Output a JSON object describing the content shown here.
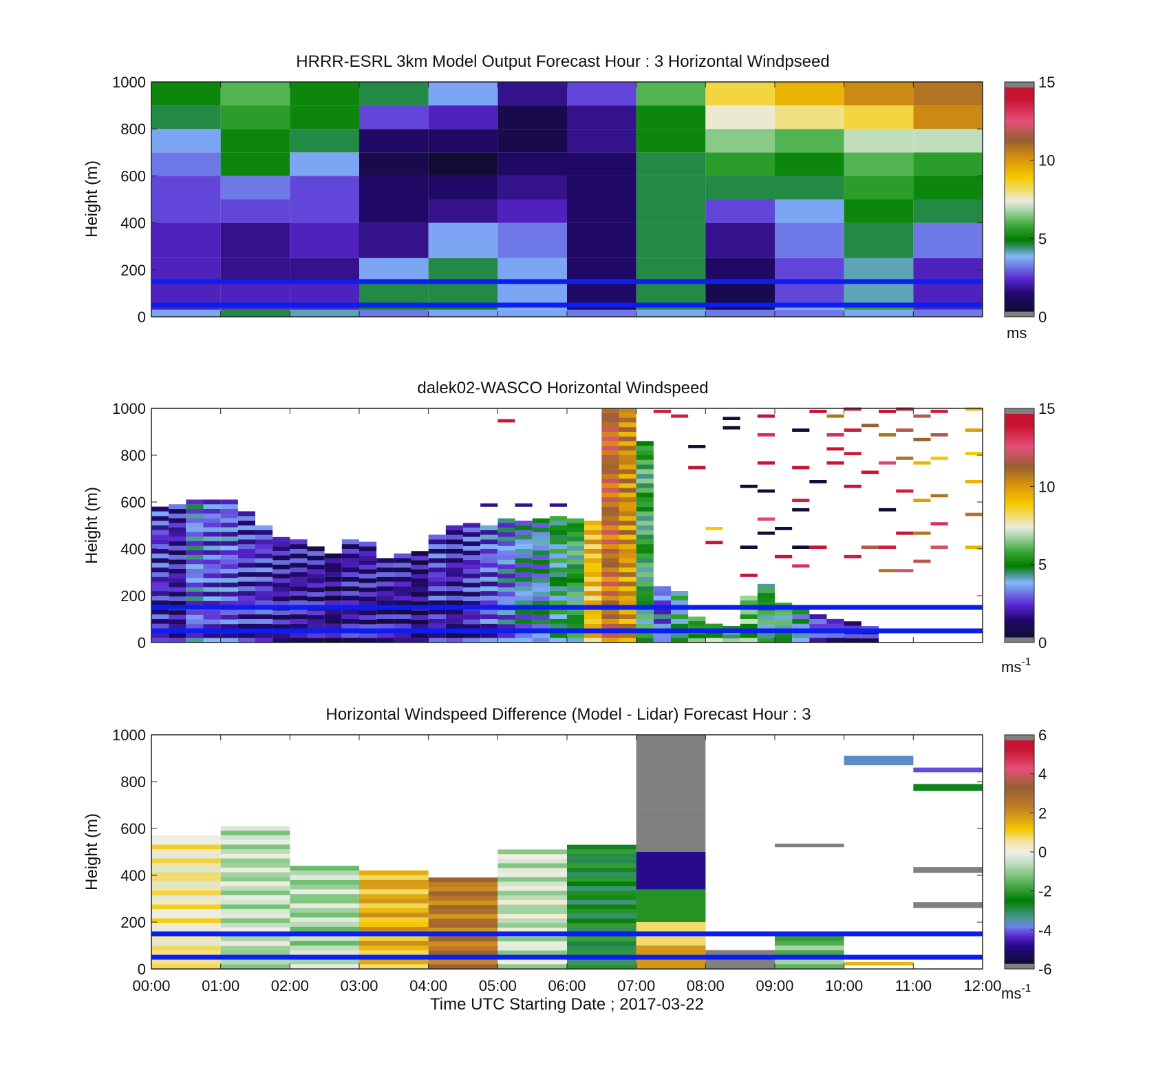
{
  "figure": {
    "xlabel": "Time UTC  Starting Date ; 2017-03-22"
  },
  "chart_data": [
    {
      "type": "heatmap",
      "title": "HRRR-ESRL 3km Model Output   Forecast Hour : 3 Horizontal Windpseed",
      "ylabel": "Height (m)",
      "ylim": [
        0,
        1000
      ],
      "yticks": [
        0,
        200,
        400,
        600,
        800,
        1000
      ],
      "xlim_hours": [
        0,
        12
      ],
      "colorbar": {
        "range": [
          0,
          15
        ],
        "ticks": [
          0,
          5,
          10,
          15
        ],
        "unit": "ms",
        "unit_sup": ""
      },
      "reference_lines_m": [
        50,
        150
      ],
      "x_start_hours": [
        0,
        1,
        2,
        3,
        4,
        5,
        6,
        7,
        8,
        9,
        10,
        11
      ],
      "y_edges_m": [
        0,
        30,
        60,
        150,
        250,
        400,
        500,
        600,
        700,
        800,
        900,
        1000
      ],
      "values_ms": [
        [
          3.5,
          4.5,
          4.0,
          3.0,
          3.5,
          3.5,
          3.0,
          3.5,
          3.0,
          3.0,
          3.5,
          3.0
        ],
        [
          2.0,
          2.0,
          2.0,
          5.0,
          5.0,
          3.5,
          1.0,
          4.5,
          0.5,
          3.5,
          5.5,
          2.0
        ],
        [
          2.0,
          2.0,
          2.0,
          4.5,
          4.5,
          3.5,
          1.0,
          4.5,
          0.5,
          2.5,
          4.0,
          2.0
        ],
        [
          2.0,
          1.5,
          1.5,
          3.5,
          4.5,
          3.5,
          1.0,
          4.5,
          1.0,
          2.5,
          4.0,
          2.0
        ],
        [
          2.0,
          1.5,
          2.0,
          1.5,
          3.5,
          3.0,
          1.0,
          4.5,
          1.5,
          3.0,
          4.5,
          3.0
        ],
        [
          2.5,
          2.5,
          2.5,
          1.0,
          1.5,
          2.0,
          1.0,
          4.5,
          2.5,
          3.5,
          5.0,
          4.5
        ],
        [
          2.5,
          3.0,
          2.5,
          1.0,
          1.0,
          1.5,
          1.0,
          4.5,
          4.5,
          4.5,
          5.5,
          5.0
        ],
        [
          3.0,
          5.0,
          3.5,
          0.5,
          0.0,
          1.0,
          1.0,
          4.5,
          5.5,
          5.0,
          6.0,
          5.5
        ],
        [
          3.5,
          5.0,
          4.5,
          1.0,
          1.0,
          0.5,
          1.5,
          5.0,
          6.5,
          6.0,
          7.0,
          7.0
        ],
        [
          4.5,
          5.5,
          5.0,
          2.5,
          2.0,
          0.5,
          1.5,
          5.0,
          7.5,
          8.0,
          8.5,
          10.5
        ],
        [
          5.0,
          6.0,
          5.0,
          4.5,
          3.5,
          1.5,
          2.5,
          6.0,
          8.5,
          9.5,
          10.5,
          11.0
        ]
      ]
    },
    {
      "type": "heatmap",
      "title": "dalek02-WASCO  Horizontal Windspeed",
      "ylabel": "Height (m)",
      "ylim": [
        0,
        1000
      ],
      "yticks": [
        0,
        200,
        400,
        600,
        800,
        1000
      ],
      "xlim_hours": [
        0,
        12
      ],
      "colorbar": {
        "range": [
          0,
          15
        ],
        "ticks": [
          0,
          5,
          10,
          15
        ],
        "unit": "ms",
        "unit_sup": "-1"
      },
      "reference_lines_m": [
        50,
        150
      ],
      "column_width_hours": 0.25,
      "columns": [
        {
          "t": 0.0,
          "top": 580,
          "v": 2.0
        },
        {
          "t": 0.25,
          "top": 590,
          "v": 1.5
        },
        {
          "t": 0.5,
          "top": 610,
          "v": 3.0
        },
        {
          "t": 0.75,
          "top": 610,
          "v": 2.5
        },
        {
          "t": 1.0,
          "top": 610,
          "v": 2.5
        },
        {
          "t": 1.25,
          "top": 560,
          "v": 2.0
        },
        {
          "t": 1.5,
          "top": 500,
          "v": 2.0
        },
        {
          "t": 1.75,
          "top": 450,
          "v": 1.5
        },
        {
          "t": 2.0,
          "top": 440,
          "v": 1.5
        },
        {
          "t": 2.25,
          "top": 410,
          "v": 1.5
        },
        {
          "t": 2.5,
          "top": 380,
          "v": 1.0
        },
        {
          "t": 2.75,
          "top": 440,
          "v": 1.5
        },
        {
          "t": 3.0,
          "top": 430,
          "v": 1.5
        },
        {
          "t": 3.25,
          "top": 360,
          "v": 1.5
        },
        {
          "t": 3.5,
          "top": 380,
          "v": 1.5
        },
        {
          "t": 3.75,
          "top": 390,
          "v": 1.0
        },
        {
          "t": 4.0,
          "top": 460,
          "v": 2.0
        },
        {
          "t": 4.25,
          "top": 500,
          "v": 1.5
        },
        {
          "t": 4.5,
          "top": 510,
          "v": 2.0
        },
        {
          "t": 4.75,
          "top": 500,
          "v": 2.5
        },
        {
          "t": 5.0,
          "top": 530,
          "v": 3.0
        },
        {
          "t": 5.25,
          "top": 520,
          "v": 3.5
        },
        {
          "t": 5.5,
          "top": 530,
          "v": 3.5
        },
        {
          "t": 5.75,
          "top": 540,
          "v": 4.5
        },
        {
          "t": 6.0,
          "top": 530,
          "v": 5.0
        },
        {
          "t": 6.25,
          "top": 520,
          "v": 9.0
        },
        {
          "t": 6.5,
          "top": 1000,
          "v": 11.0
        },
        {
          "t": 6.75,
          "top": 1000,
          "v": 10.0
        },
        {
          "t": 7.0,
          "top": 860,
          "v": 5.0
        },
        {
          "t": 7.25,
          "top": 240,
          "v": 3.0
        },
        {
          "t": 7.5,
          "top": 220,
          "v": 4.5
        },
        {
          "t": 7.75,
          "top": 110,
          "v": 5.5
        },
        {
          "t": 8.0,
          "top": 80,
          "v": 6.0
        },
        {
          "t": 8.25,
          "top": 70,
          "v": 5.5
        },
        {
          "t": 8.5,
          "top": 200,
          "v": 6.0
        },
        {
          "t": 8.75,
          "top": 250,
          "v": 5.0
        },
        {
          "t": 9.0,
          "top": 170,
          "v": 5.0
        },
        {
          "t": 9.25,
          "top": 140,
          "v": 4.0
        },
        {
          "t": 9.5,
          "top": 120,
          "v": 2.5
        },
        {
          "t": 9.75,
          "top": 100,
          "v": 2.0
        },
        {
          "t": 10.0,
          "top": 90,
          "v": 1.5
        },
        {
          "t": 10.25,
          "top": 70,
          "v": 1.5
        }
      ],
      "sparse_returns": [
        {
          "t": 4.75,
          "z": 580,
          "v": 1.5
        },
        {
          "t": 5.25,
          "z": 580,
          "v": 1.5
        },
        {
          "t": 5.75,
          "z": 580,
          "v": 1.5
        },
        {
          "t": 5.0,
          "z": 940,
          "v": 14.5
        },
        {
          "t": 7.25,
          "z": 980,
          "v": 14.0
        },
        {
          "t": 7.5,
          "z": 960,
          "v": 14.0
        },
        {
          "t": 7.75,
          "z": 740,
          "v": 14.5
        },
        {
          "t": 7.75,
          "z": 830,
          "v": 0.0
        },
        {
          "t": 8.0,
          "z": 480,
          "v": 9.0
        },
        {
          "t": 8.0,
          "z": 420,
          "v": 14.5
        },
        {
          "t": 8.25,
          "z": 950,
          "v": 0.0
        },
        {
          "t": 8.25,
          "z": 910,
          "v": 0.0
        },
        {
          "t": 8.5,
          "z": 660,
          "v": 0.0
        },
        {
          "t": 8.5,
          "z": 400,
          "v": 0.0
        },
        {
          "t": 8.5,
          "z": 280,
          "v": 14.5
        },
        {
          "t": 8.75,
          "z": 960,
          "v": 14.5
        },
        {
          "t": 8.75,
          "z": 880,
          "v": 13.5
        },
        {
          "t": 8.75,
          "z": 760,
          "v": 14.5
        },
        {
          "t": 8.75,
          "z": 640,
          "v": 0.0
        },
        {
          "t": 8.75,
          "z": 520,
          "v": 13.0
        },
        {
          "t": 8.75,
          "z": 460,
          "v": 0.0
        },
        {
          "t": 9.0,
          "z": 480,
          "v": 0.0
        },
        {
          "t": 9.0,
          "z": 360,
          "v": 14.5
        },
        {
          "t": 9.25,
          "z": 900,
          "v": 0.0
        },
        {
          "t": 9.25,
          "z": 740,
          "v": 14.5
        },
        {
          "t": 9.25,
          "z": 600,
          "v": 14.0
        },
        {
          "t": 9.25,
          "z": 560,
          "v": 0.0
        },
        {
          "t": 9.25,
          "z": 400,
          "v": 0.0
        },
        {
          "t": 9.25,
          "z": 320,
          "v": 13.5
        },
        {
          "t": 9.5,
          "z": 980,
          "v": 14.5
        },
        {
          "t": 9.5,
          "z": 680,
          "v": 0.0
        },
        {
          "t": 9.5,
          "z": 400,
          "v": 14.5
        },
        {
          "t": 9.75,
          "z": 960,
          "v": 11.0
        },
        {
          "t": 9.75,
          "z": 880,
          "v": 13.5
        },
        {
          "t": 9.75,
          "z": 820,
          "v": 14.5
        },
        {
          "t": 9.75,
          "z": 760,
          "v": 14.5
        },
        {
          "t": 10.0,
          "z": 990,
          "v": 14.5
        },
        {
          "t": 10.0,
          "z": 900,
          "v": 14.0
        },
        {
          "t": 10.0,
          "z": 800,
          "v": 14.0
        },
        {
          "t": 10.0,
          "z": 660,
          "v": 14.5
        },
        {
          "t": 10.0,
          "z": 360,
          "v": 14.0
        },
        {
          "t": 10.25,
          "z": 920,
          "v": 11.5
        },
        {
          "t": 10.25,
          "z": 720,
          "v": 14.5
        },
        {
          "t": 10.25,
          "z": 400,
          "v": 12.0
        },
        {
          "t": 10.5,
          "z": 980,
          "v": 14.5
        },
        {
          "t": 10.5,
          "z": 880,
          "v": 11.0
        },
        {
          "t": 10.5,
          "z": 760,
          "v": 13.0
        },
        {
          "t": 10.5,
          "z": 560,
          "v": 0.0
        },
        {
          "t": 10.5,
          "z": 400,
          "v": 14.0
        },
        {
          "t": 10.5,
          "z": 300,
          "v": 11.0
        },
        {
          "t": 10.75,
          "z": 990,
          "v": 14.5
        },
        {
          "t": 10.75,
          "z": 900,
          "v": 12.0
        },
        {
          "t": 10.75,
          "z": 780,
          "v": 11.0
        },
        {
          "t": 10.75,
          "z": 640,
          "v": 14.0
        },
        {
          "t": 10.75,
          "z": 460,
          "v": 14.5
        },
        {
          "t": 10.75,
          "z": 300,
          "v": 12.5
        },
        {
          "t": 11.0,
          "z": 960,
          "v": 12.0
        },
        {
          "t": 11.0,
          "z": 860,
          "v": 11.5
        },
        {
          "t": 11.0,
          "z": 760,
          "v": 9.5
        },
        {
          "t": 11.0,
          "z": 600,
          "v": 10.0
        },
        {
          "t": 11.0,
          "z": 460,
          "v": 11.0
        },
        {
          "t": 11.0,
          "z": 340,
          "v": 12.0
        },
        {
          "t": 11.25,
          "z": 980,
          "v": 14.0
        },
        {
          "t": 11.25,
          "z": 880,
          "v": 12.0
        },
        {
          "t": 11.25,
          "z": 780,
          "v": 9.0
        },
        {
          "t": 11.25,
          "z": 620,
          "v": 11.0
        },
        {
          "t": 11.25,
          "z": 500,
          "v": 13.5
        },
        {
          "t": 11.25,
          "z": 400,
          "v": 12.5
        },
        {
          "t": 11.75,
          "z": 990,
          "v": 9.5
        },
        {
          "t": 11.75,
          "z": 900,
          "v": 10.0
        },
        {
          "t": 11.75,
          "z": 800,
          "v": 9.0
        },
        {
          "t": 11.75,
          "z": 680,
          "v": 9.5
        },
        {
          "t": 11.75,
          "z": 540,
          "v": 11.0
        },
        {
          "t": 11.75,
          "z": 400,
          "v": 9.5
        }
      ]
    },
    {
      "type": "heatmap",
      "title": "Horizontal Windspeed Difference (Model - Lidar) Forecast Hour : 3",
      "ylabel": "Height (m)",
      "ylim": [
        0,
        1000
      ],
      "yticks": [
        0,
        200,
        400,
        600,
        800,
        1000
      ],
      "xlim_hours": [
        0,
        12
      ],
      "xticks": [
        "00:00",
        "01:00",
        "02:00",
        "03:00",
        "04:00",
        "05:00",
        "06:00",
        "07:00",
        "08:00",
        "09:00",
        "10:00",
        "11:00",
        "12:00"
      ],
      "colorbar": {
        "range": [
          -6,
          6
        ],
        "ticks": [
          -6,
          -4,
          -2,
          0,
          2,
          4,
          6
        ],
        "unit": "ms",
        "unit_sup": "-1"
      },
      "reference_lines_m": [
        50,
        150
      ],
      "columns": [
        {
          "t0": 0,
          "t1": 1,
          "top": 570,
          "v": 0.4
        },
        {
          "t0": 1,
          "t1": 2,
          "top": 610,
          "v": -0.6
        },
        {
          "t0": 2,
          "t1": 3,
          "top": 440,
          "v": -0.8
        },
        {
          "t0": 3,
          "t1": 4,
          "top": 420,
          "v": 1.5
        },
        {
          "t0": 4,
          "t1": 5,
          "top": 390,
          "v": 2.7
        },
        {
          "t0": 5,
          "t1": 6,
          "top": 510,
          "v": -0.5
        },
        {
          "t0": 6,
          "t1": 7,
          "top": 530,
          "v": -2.7
        },
        {
          "t0": 7,
          "t1": 8,
          "top": 1000,
          "v": 7.0
        },
        {
          "t0": 8,
          "t1": 9,
          "top": 80,
          "v": 7.0
        },
        {
          "t0": 9,
          "t1": 10,
          "top": 160,
          "v": -1.5
        }
      ],
      "bands": [
        {
          "t0": 7,
          "t1": 8,
          "z0": 0,
          "z1": 100,
          "v": 2.0
        },
        {
          "t0": 7,
          "t1": 8,
          "z0": 100,
          "z1": 200,
          "v": 0.8
        },
        {
          "t0": 7,
          "t1": 8,
          "z0": 200,
          "z1": 340,
          "v": -2.2
        },
        {
          "t0": 7,
          "t1": 8,
          "z0": 340,
          "z1": 500,
          "v": -5.0
        },
        {
          "t0": 9,
          "t1": 10,
          "z0": 520,
          "z1": 535,
          "v": 7.0
        },
        {
          "t0": 10,
          "t1": 11,
          "z0": 870,
          "z1": 910,
          "v": -3.8
        },
        {
          "t0": 11,
          "t1": 12,
          "z0": 840,
          "z1": 860,
          "v": -4.3
        },
        {
          "t0": 11,
          "t1": 12,
          "z0": 760,
          "z1": 790,
          "v": -2.8
        },
        {
          "t0": 11,
          "t1": 12,
          "z0": 410,
          "z1": 435,
          "v": 7.0
        },
        {
          "t0": 11,
          "t1": 12,
          "z0": 260,
          "z1": 285,
          "v": 7.0
        },
        {
          "t0": 10,
          "t1": 11,
          "z0": 15,
          "z1": 30,
          "v": 1.5
        }
      ]
    }
  ]
}
